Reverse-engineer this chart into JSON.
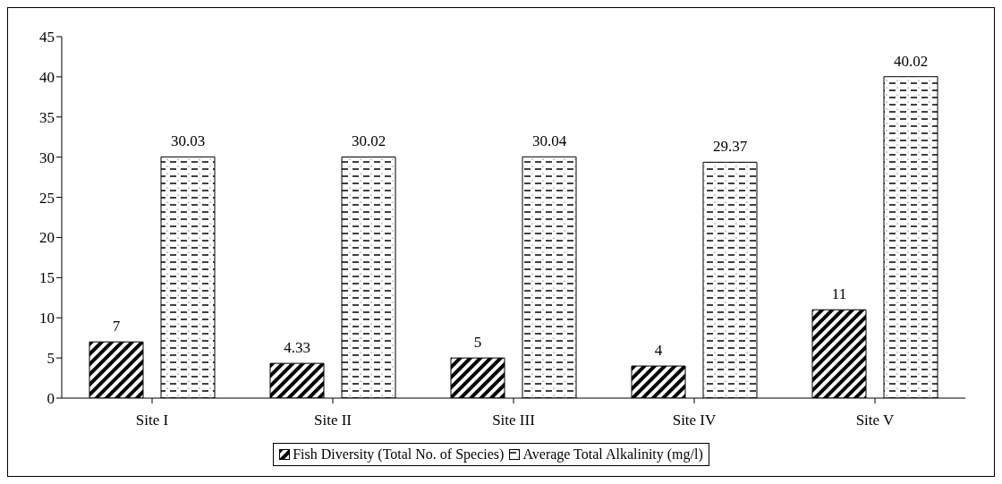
{
  "chart_data": {
    "type": "bar",
    "categories": [
      "Site I",
      "Site II",
      "Site III",
      "Site IV",
      "Site V"
    ],
    "series": [
      {
        "name": "Fish Diversity (Total No. of Species)",
        "color": "#000000",
        "values": [
          7,
          4.33,
          5,
          4,
          11
        ]
      },
      {
        "name": "Average Total Alkalinity (mg/l)",
        "color": "#000000",
        "values": [
          30.03,
          30.02,
          30.04,
          29.37,
          40.02
        ]
      }
    ],
    "ylim": [
      0,
      45
    ],
    "yticks": [
      0,
      5,
      10,
      15,
      20,
      25,
      30,
      35,
      40,
      45
    ],
    "data_labels": true,
    "legend": "bottom"
  }
}
